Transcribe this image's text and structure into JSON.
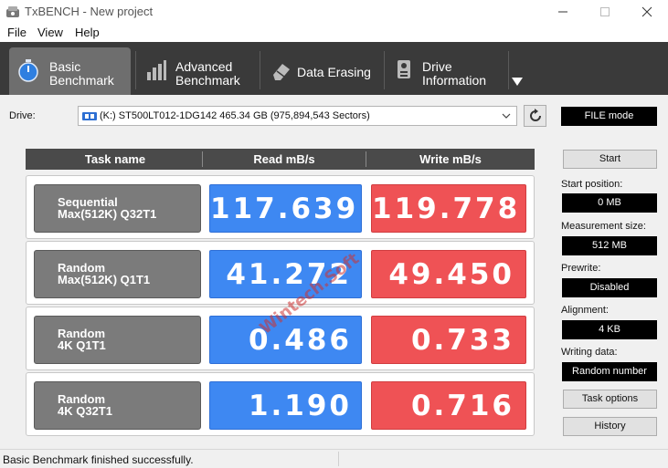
{
  "window": {
    "title": "TxBENCH - New project"
  },
  "menu": [
    "File",
    "View",
    "Help"
  ],
  "tabs": [
    {
      "label": "Basic\nBenchmark",
      "icon": "stopwatch-icon",
      "active": true
    },
    {
      "label": "Advanced\nBenchmark",
      "icon": "bar-chart-icon",
      "active": false
    },
    {
      "label": "Data Erasing",
      "icon": "eraser-icon",
      "active": false
    },
    {
      "label": "Drive\nInformation",
      "icon": "drive-info-icon",
      "active": false
    }
  ],
  "drive": {
    "label": "Drive:",
    "selected": "(K:) ST500LT012-1DG142  465.34 GB (975,894,543 Sectors)",
    "mode": "FILE mode"
  },
  "table": {
    "headers": [
      "Task name",
      "Read mB/s",
      "Write mB/s"
    ],
    "rows": [
      {
        "task": "Sequential\nMax(512K) Q32T1",
        "read": "117.639",
        "write": "119.778"
      },
      {
        "task": "Random\nMax(512K) Q1T1",
        "read": "41.272",
        "write": "49.450"
      },
      {
        "task": "Random\n4K Q1T1",
        "read": "0.486",
        "write": "0.733"
      },
      {
        "task": "Random\n4K Q32T1",
        "read": "1.190",
        "write": "0.716"
      }
    ]
  },
  "side": {
    "start_label": "Start",
    "start_position_label": "Start position:",
    "start_position_value": "0 MB",
    "measurement_size_label": "Measurement size:",
    "measurement_size_value": "512 MB",
    "prewrite_label": "Prewrite:",
    "prewrite_value": "Disabled",
    "alignment_label": "Alignment:",
    "alignment_value": "4 KB",
    "writing_data_label": "Writing data:",
    "writing_data_value": "Random number",
    "task_options_label": "Task options",
    "history_label": "History"
  },
  "watermark": "Wintech.Soft",
  "status": {
    "text": "Basic Benchmark finished successfully."
  },
  "colors": {
    "read": "#3e88f2",
    "write": "#ef5255",
    "task": "#7b7b7b",
    "tabbar": "#3a3a3a"
  }
}
